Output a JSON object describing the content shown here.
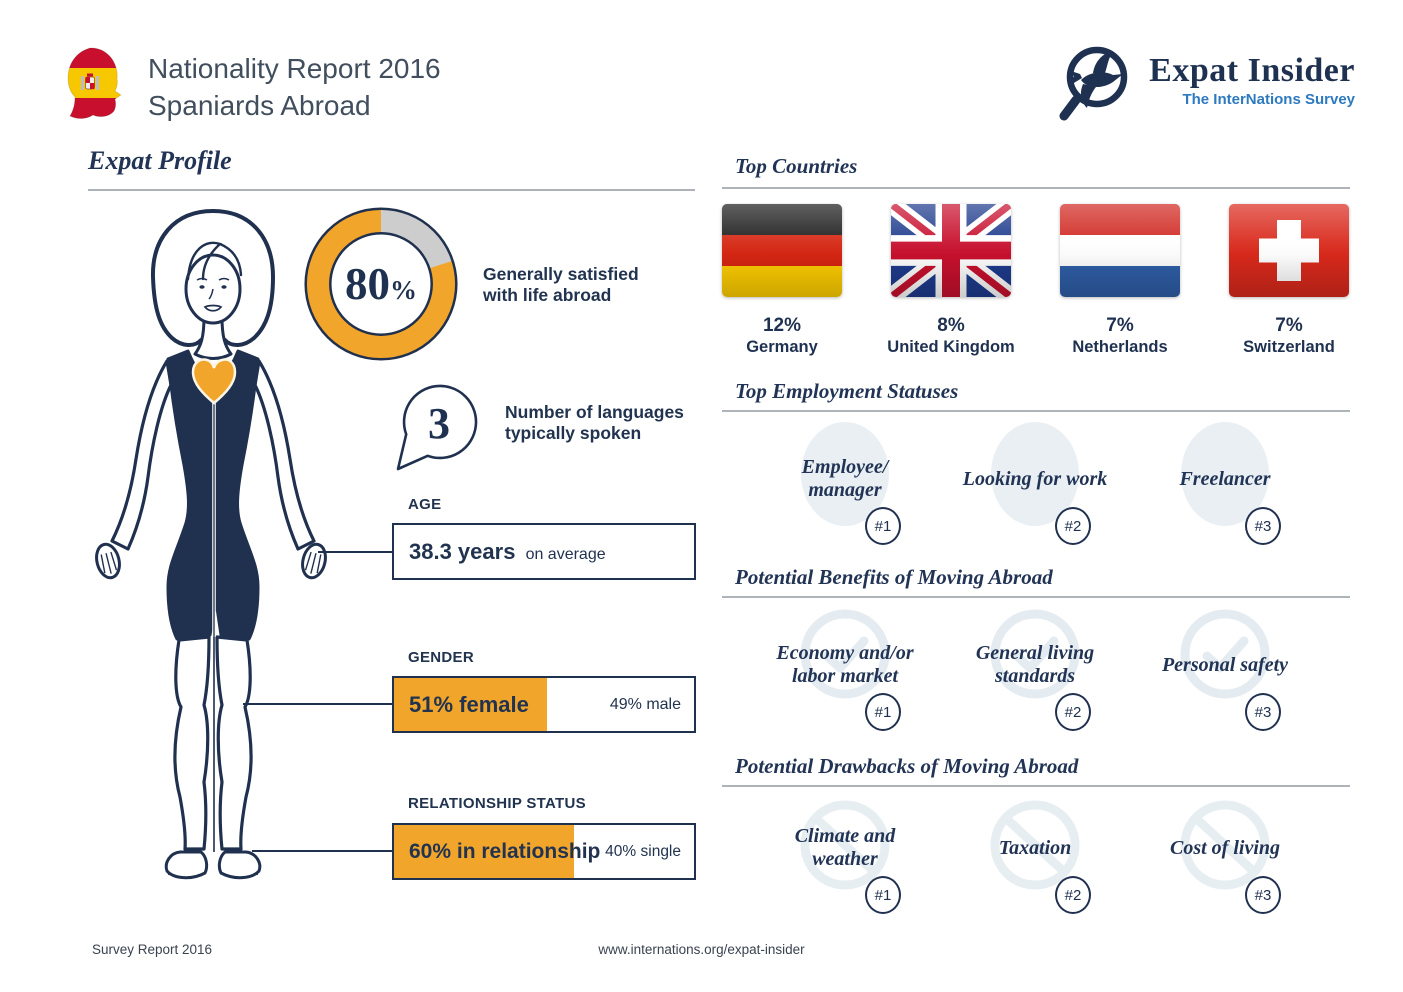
{
  "header": {
    "title_line1": "Nationality Report 2016",
    "title_line2": "Spaniards Abroad",
    "brand": "Expat Insider",
    "brand_tagline": "The InterNations Survey"
  },
  "profile": {
    "heading": "Expat Profile",
    "satisfaction": {
      "percent": 80,
      "value_big": "80",
      "value_unit": "%",
      "label_line1": "Generally satisfied",
      "label_line2": "with life abroad"
    },
    "languages": {
      "value": "3",
      "label_line1": "Number of languages",
      "label_line2": "typically spoken"
    },
    "age": {
      "label": "AGE",
      "value": "38.3 years",
      "suffix": "on average"
    },
    "gender": {
      "label": "GENDER",
      "female_pct": 51,
      "female_label": "51% female",
      "male_label": "49% male"
    },
    "relationship": {
      "label": "RELATIONSHIP STATUS",
      "pct": 60,
      "primary_label": "60% in relationship",
      "secondary_label": "40% single"
    }
  },
  "top_countries": {
    "heading": "Top Countries",
    "items": [
      {
        "pct": "12%",
        "name": "Germany"
      },
      {
        "pct": "8%",
        "name": "United Kingdom"
      },
      {
        "pct": "7%",
        "name": "Netherlands"
      },
      {
        "pct": "7%",
        "name": "Switzerland"
      }
    ]
  },
  "employment": {
    "heading": "Top Employment Statuses",
    "items": [
      {
        "line1": "Employee/",
        "line2": "manager",
        "rank": "#1"
      },
      {
        "line1": "Looking for work",
        "line2": "",
        "rank": "#2"
      },
      {
        "line1": "Freelancer",
        "line2": "",
        "rank": "#3"
      }
    ]
  },
  "benefits": {
    "heading": "Potential Benefits of Moving Abroad",
    "items": [
      {
        "line1": "Economy and/or",
        "line2": "labor market",
        "rank": "#1"
      },
      {
        "line1": "General living",
        "line2": "standards",
        "rank": "#2"
      },
      {
        "line1": "Personal safety",
        "line2": "",
        "rank": "#3"
      }
    ]
  },
  "drawbacks": {
    "heading": "Potential Drawbacks of Moving Abroad",
    "items": [
      {
        "line1": "Climate and",
        "line2": "weather",
        "rank": "#1"
      },
      {
        "line1": "Taxation",
        "line2": "",
        "rank": "#2"
      },
      {
        "line1": "Cost of living",
        "line2": "",
        "rank": "#3"
      }
    ]
  },
  "footer": {
    "left": "Survey Report 2016",
    "center": "www.internations.org/expat-insider"
  },
  "colors": {
    "accent_orange": "#F2A52B",
    "navy": "#20304F",
    "survey_blue": "#2E7AC0",
    "ring_gray": "#CDCDCD"
  },
  "chart_data": [
    {
      "type": "pie",
      "style": "donut",
      "title": "Generally satisfied with life abroad",
      "labels": [
        "satisfied",
        "remainder"
      ],
      "values": [
        80,
        20
      ],
      "unit": "%",
      "colors": [
        "#F2A52B",
        "#CDCDCD"
      ],
      "center_label": "80%"
    },
    {
      "type": "bar",
      "title": "Gender",
      "categories": [
        "female",
        "male"
      ],
      "values": [
        51,
        49
      ],
      "unit": "%"
    },
    {
      "type": "bar",
      "title": "Relationship status",
      "categories": [
        "in relationship",
        "single"
      ],
      "values": [
        60,
        40
      ],
      "unit": "%"
    },
    {
      "type": "bar",
      "title": "Top Countries",
      "categories": [
        "Germany",
        "United Kingdom",
        "Netherlands",
        "Switzerland"
      ],
      "values": [
        12,
        8,
        7,
        7
      ],
      "unit": "%"
    },
    {
      "type": "table",
      "title": "Top Employment Statuses",
      "rows": [
        [
          "#1",
          "Employee/manager"
        ],
        [
          "#2",
          "Looking for work"
        ],
        [
          "#3",
          "Freelancer"
        ]
      ]
    },
    {
      "type": "table",
      "title": "Potential Benefits of Moving Abroad",
      "rows": [
        [
          "#1",
          "Economy and/or labor market"
        ],
        [
          "#2",
          "General living standards"
        ],
        [
          "#3",
          "Personal safety"
        ]
      ]
    },
    {
      "type": "table",
      "title": "Potential Drawbacks of Moving Abroad",
      "rows": [
        [
          "#1",
          "Climate and weather"
        ],
        [
          "#2",
          "Taxation"
        ],
        [
          "#3",
          "Cost of living"
        ]
      ]
    },
    {
      "type": "scalar",
      "title": "Number of languages typically spoken",
      "value": 3
    },
    {
      "type": "scalar",
      "title": "Average age",
      "value": 38.3,
      "unit": "years"
    }
  ]
}
